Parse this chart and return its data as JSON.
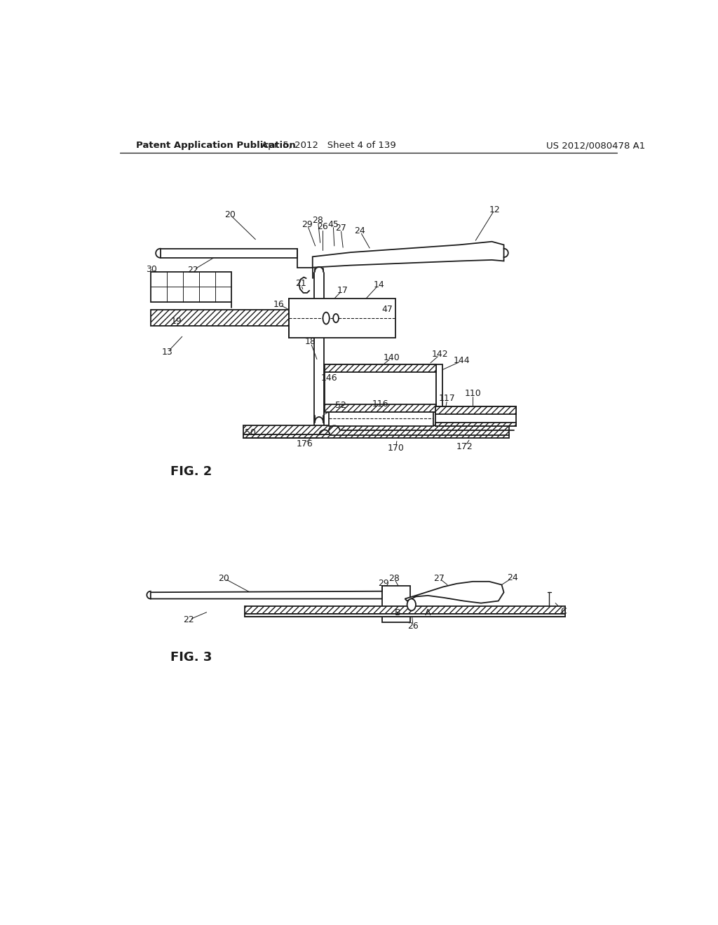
{
  "header_left": "Patent Application Publication",
  "header_center": "Apr. 5, 2012   Sheet 4 of 139",
  "header_right": "US 2012/0080478 A1",
  "fig2_label": "FIG. 2",
  "fig3_label": "FIG. 3",
  "bg_color": "#ffffff",
  "line_color": "#1a1a1a"
}
